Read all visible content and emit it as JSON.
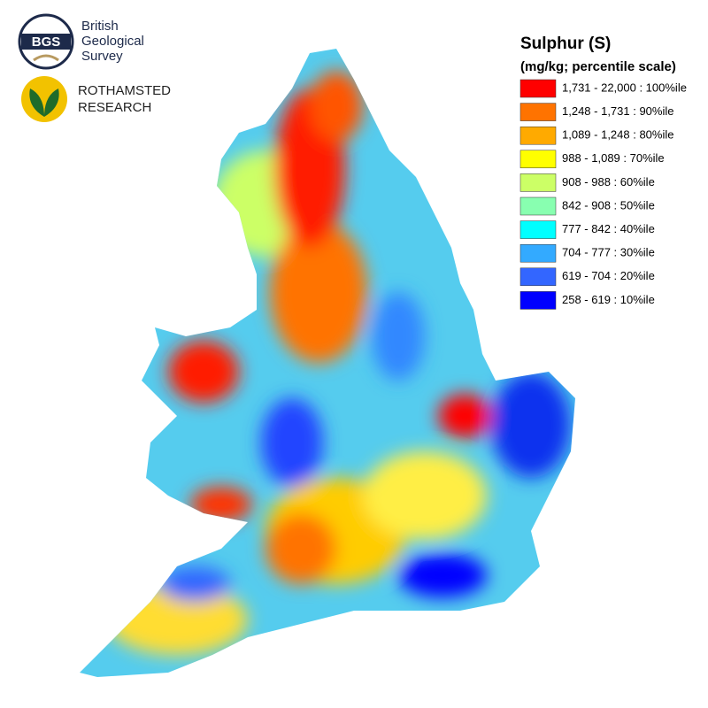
{
  "logos": {
    "bgs": {
      "badge": "BGS",
      "name": [
        "British",
        "Geological",
        "Survey"
      ]
    },
    "rothamsted": [
      "ROTHAMSTED",
      "RESEARCH"
    ]
  },
  "legend": {
    "title": "Sulphur (S)",
    "subtitle": "(mg/kg; percentile scale)",
    "items": [
      {
        "label": "1,731 - 22,000 : 100%ile",
        "color": "#ff0000"
      },
      {
        "label": "1,248 - 1,731 : 90%ile",
        "color": "#ff7300"
      },
      {
        "label": "1,089 - 1,248 : 80%ile",
        "color": "#ffaa00"
      },
      {
        "label": "988 - 1,089 : 70%ile",
        "color": "#ffff00"
      },
      {
        "label": "908 - 988 : 60%ile",
        "color": "#ccff66"
      },
      {
        "label": "842 - 908 : 50%ile",
        "color": "#88ffb0"
      },
      {
        "label": "777 - 842 : 40%ile",
        "color": "#00ffff"
      },
      {
        "label": "704 - 777 : 30%ile",
        "color": "#33aaff"
      },
      {
        "label": "619 - 704 : 20%ile",
        "color": "#3366ff"
      },
      {
        "label": "258 - 619 : 10%ile",
        "color": "#0000ff"
      }
    ]
  }
}
